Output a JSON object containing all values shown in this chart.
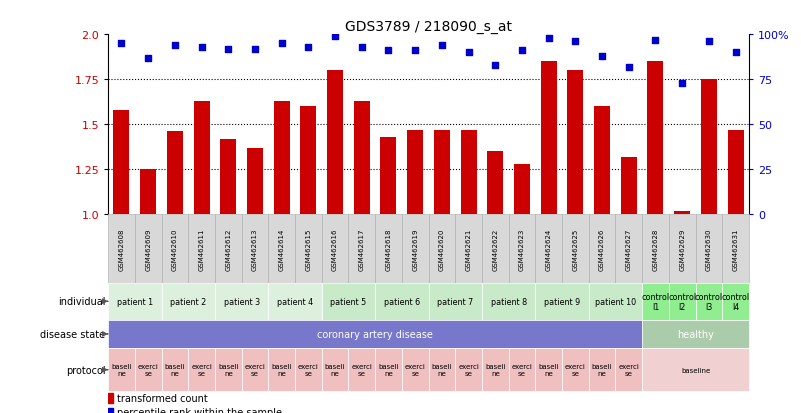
{
  "title": "GDS3789 / 218090_s_at",
  "samples": [
    "GSM462608",
    "GSM462609",
    "GSM462610",
    "GSM462611",
    "GSM462612",
    "GSM462613",
    "GSM462614",
    "GSM462615",
    "GSM462616",
    "GSM462617",
    "GSM462618",
    "GSM462619",
    "GSM462620",
    "GSM462621",
    "GSM462622",
    "GSM462623",
    "GSM462624",
    "GSM462625",
    "GSM462626",
    "GSM462627",
    "GSM462628",
    "GSM462629",
    "GSM462630",
    "GSM462631"
  ],
  "transformed_count": [
    1.58,
    1.25,
    1.46,
    1.63,
    1.42,
    1.37,
    1.63,
    1.6,
    1.8,
    1.63,
    1.43,
    1.47,
    1.47,
    1.47,
    1.35,
    1.28,
    1.85,
    1.8,
    1.6,
    1.32,
    1.85,
    1.02,
    1.75,
    1.47
  ],
  "percentile_rank": [
    95,
    87,
    94,
    93,
    92,
    92,
    95,
    93,
    99,
    93,
    91,
    91,
    94,
    90,
    83,
    91,
    98,
    96,
    88,
    82,
    97,
    73,
    96,
    90
  ],
  "bar_color": "#cc0000",
  "dot_color": "#0000cc",
  "ylim_left": [
    1.0,
    2.0
  ],
  "ylim_right": [
    0,
    100
  ],
  "yticks_left": [
    1.0,
    1.25,
    1.5,
    1.75,
    2.0
  ],
  "yticks_right": [
    0,
    25,
    50,
    75,
    100
  ],
  "hlines": [
    1.25,
    1.5,
    1.75
  ],
  "individual_groups": [
    {
      "label": "patient 1",
      "start": 0,
      "end": 2,
      "color": "#ddf0dd"
    },
    {
      "label": "patient 2",
      "start": 2,
      "end": 4,
      "color": "#ddf0dd"
    },
    {
      "label": "patient 3",
      "start": 4,
      "end": 6,
      "color": "#ddf0dd"
    },
    {
      "label": "patient 4",
      "start": 6,
      "end": 8,
      "color": "#ddf0dd"
    },
    {
      "label": "patient 5",
      "start": 8,
      "end": 10,
      "color": "#c8eac8"
    },
    {
      "label": "patient 6",
      "start": 10,
      "end": 12,
      "color": "#c8eac8"
    },
    {
      "label": "patient 7",
      "start": 12,
      "end": 14,
      "color": "#c8eac8"
    },
    {
      "label": "patient 8",
      "start": 14,
      "end": 16,
      "color": "#c8eac8"
    },
    {
      "label": "patient 9",
      "start": 16,
      "end": 18,
      "color": "#c8eac8"
    },
    {
      "label": "patient 10",
      "start": 18,
      "end": 20,
      "color": "#c8eac8"
    },
    {
      "label": "control\nl1",
      "start": 20,
      "end": 21,
      "color": "#90ee90"
    },
    {
      "label": "control\nl2",
      "start": 21,
      "end": 22,
      "color": "#90ee90"
    },
    {
      "label": "control\nl3",
      "start": 22,
      "end": 23,
      "color": "#90ee90"
    },
    {
      "label": "control\nl4",
      "start": 23,
      "end": 24,
      "color": "#90ee90"
    }
  ],
  "disease_groups": [
    {
      "label": "coronary artery disease",
      "start": 0,
      "end": 20,
      "color": "#7777cc"
    },
    {
      "label": "healthy",
      "start": 20,
      "end": 24,
      "color": "#aaccaa"
    }
  ],
  "protocol_groups_left": [
    {
      "label": "baseli\nne",
      "start": 0,
      "end": 1,
      "color": "#f0c0c0"
    },
    {
      "label": "exerci\nse",
      "start": 1,
      "end": 2,
      "color": "#f0c0c0"
    },
    {
      "label": "baseli\nne",
      "start": 2,
      "end": 3,
      "color": "#f0c0c0"
    },
    {
      "label": "exerci\nse",
      "start": 3,
      "end": 4,
      "color": "#f0c0c0"
    },
    {
      "label": "baseli\nne",
      "start": 4,
      "end": 5,
      "color": "#f0c0c0"
    },
    {
      "label": "exerci\nse",
      "start": 5,
      "end": 6,
      "color": "#f0c0c0"
    },
    {
      "label": "baseli\nne",
      "start": 6,
      "end": 7,
      "color": "#f0c0c0"
    },
    {
      "label": "exerci\nse",
      "start": 7,
      "end": 8,
      "color": "#f0c0c0"
    },
    {
      "label": "baseli\nne",
      "start": 8,
      "end": 9,
      "color": "#f0c0c0"
    },
    {
      "label": "exerci\nse",
      "start": 9,
      "end": 10,
      "color": "#f0c0c0"
    },
    {
      "label": "baseli\nne",
      "start": 10,
      "end": 11,
      "color": "#f0c0c0"
    },
    {
      "label": "exerci\nse",
      "start": 11,
      "end": 12,
      "color": "#f0c0c0"
    },
    {
      "label": "baseli\nne",
      "start": 12,
      "end": 13,
      "color": "#f0c0c0"
    },
    {
      "label": "exerci\nse",
      "start": 13,
      "end": 14,
      "color": "#f0c0c0"
    },
    {
      "label": "baseli\nne",
      "start": 14,
      "end": 15,
      "color": "#f0c0c0"
    },
    {
      "label": "exerci\nse",
      "start": 15,
      "end": 16,
      "color": "#f0c0c0"
    },
    {
      "label": "baseli\nne",
      "start": 16,
      "end": 17,
      "color": "#f0c0c0"
    },
    {
      "label": "exerci\nse",
      "start": 17,
      "end": 18,
      "color": "#f0c0c0"
    },
    {
      "label": "baseli\nne",
      "start": 18,
      "end": 19,
      "color": "#f0c0c0"
    },
    {
      "label": "exerci\nse",
      "start": 19,
      "end": 20,
      "color": "#f0c0c0"
    }
  ],
  "protocol_group_right": {
    "label": "baseline",
    "start": 20,
    "end": 24,
    "color": "#f0d0d0"
  },
  "legend_items": [
    {
      "label": "transformed count",
      "color": "#cc0000"
    },
    {
      "label": "percentile rank within the sample",
      "color": "#0000cc"
    }
  ],
  "row_labels": [
    "individual",
    "disease state",
    "protocol"
  ],
  "sample_box_color": "#d8d8d8",
  "sample_box_edge": "#aaaaaa"
}
